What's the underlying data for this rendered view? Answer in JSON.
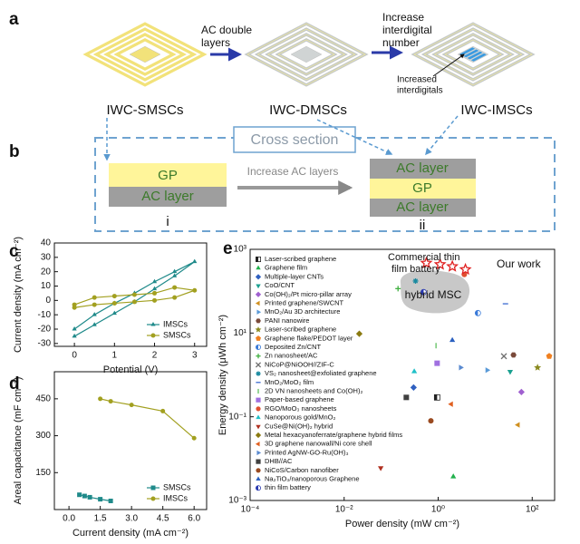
{
  "panel_a": {
    "label": "a",
    "arrow_1": [
      "AC double",
      "layers"
    ],
    "arrow_2": [
      "Increase",
      "interdigital",
      "number"
    ],
    "devices": [
      "IWC-SMSCs",
      "IWC-DMSCs",
      "IWC-IMSCs"
    ],
    "annotation": [
      "Increased",
      "interdigitals"
    ]
  },
  "panel_b": {
    "label": "b",
    "title": "Cross section",
    "arrow": "Increase AC layers",
    "left_layers": [
      "GP",
      "AC layer"
    ],
    "left_label": "i",
    "right_layers": [
      "AC layer",
      "GP",
      "AC layer"
    ],
    "right_label": "ii"
  },
  "chart_data": [
    {
      "type": "line",
      "panel_label": "c",
      "xlabel": "Potential (V)",
      "ylabel": "Current density (mA cm⁻²)",
      "xlim": [
        -0.5,
        3.3
      ],
      "xticks": [
        0,
        1,
        2,
        3
      ],
      "ylim": [
        -32,
        40
      ],
      "yticks": [
        -30,
        -20,
        -10,
        0,
        10,
        20,
        30,
        40
      ],
      "legend": "lower right",
      "series": [
        {
          "name": "IMSCs",
          "color": "#1f8a8a",
          "marker": "triangle",
          "x": [
            0,
            0.5,
            1,
            1.5,
            2,
            2.5,
            3,
            2.5,
            2,
            1.5,
            1,
            0.5,
            0
          ],
          "values": [
            -25,
            -17,
            -9,
            -1,
            8,
            17,
            27,
            20,
            13,
            5,
            -2,
            -10,
            -20
          ]
        },
        {
          "name": "SMSCs",
          "color": "#a2a020",
          "marker": "circle",
          "x": [
            0,
            0.5,
            1,
            1.5,
            2,
            2.5,
            3,
            2.5,
            2,
            1.5,
            1,
            0.5,
            0
          ],
          "values": [
            -5,
            -3,
            -2,
            -1,
            0,
            2,
            7,
            9,
            5,
            4,
            3,
            2,
            -3
          ]
        }
      ]
    },
    {
      "type": "line",
      "panel_label": "d",
      "xlabel": "Current density (mA cm⁻²)",
      "ylabel": "Areal capacitance (mF cm⁻²)",
      "xlim": [
        -0.7,
        6.6
      ],
      "xticks": [
        {
          "value": 0,
          "label": "0.0"
        },
        1.5,
        {
          "value": 3,
          "label": "3.0"
        },
        4.5,
        {
          "value": 6,
          "label": "6.0"
        }
      ],
      "ylim": [
        0,
        560
      ],
      "yticks": [
        150,
        300,
        450
      ],
      "legend": "lower right",
      "series": [
        {
          "name": "SMSCs",
          "color": "#1f8a8a",
          "marker": "square",
          "x": [
            0.5,
            0.75,
            1,
            1.5,
            2
          ],
          "values": [
            60,
            55,
            50,
            42,
            35
          ]
        },
        {
          "name": "IMSCs",
          "color": "#a2a020",
          "marker": "circle",
          "x": [
            1.5,
            2,
            3,
            4.5,
            6
          ],
          "values": [
            450,
            440,
            425,
            400,
            290
          ]
        }
      ]
    },
    {
      "type": "scatter",
      "panel_label": "e",
      "xlabel": "Power density (mW cm⁻²)",
      "ylabel": "Energy density (μWh cm⁻²)",
      "log_x": true,
      "log_y": true,
      "xlim": [
        0.0001,
        300
      ],
      "ylim": [
        0.001,
        1000
      ],
      "xticks": [
        {
          "value": 0.0001,
          "label": "10⁻⁴"
        },
        {
          "value": 0.01,
          "label": "10⁻²"
        },
        {
          "value": 1,
          "label": "10⁰"
        },
        {
          "value": 100,
          "label": "10²"
        }
      ],
      "yticks": [
        {
          "value": 0.001,
          "label": "10⁻³"
        },
        {
          "value": 0.1,
          "label": "10⁻¹"
        },
        {
          "value": 10,
          "label": "10¹"
        },
        {
          "value": 1000,
          "label": "10³"
        }
      ],
      "legend": "upper left",
      "annotations": {
        "battery": [
          "Commercial thin",
          "film battery"
        ],
        "our_work": "Our work",
        "hybrid": "hybrid MSC"
      },
      "our_work": {
        "color": "#e02020",
        "x": [
          0.56,
          1.1,
          2.0,
          3.8
        ],
        "values": [
          470,
          435,
          390,
          330
        ]
      },
      "series": [
        {
          "name": "Laser-scribed graphene",
          "color": "#222222",
          "marker": "square-half",
          "x": [
            0.95
          ],
          "values": [
            0.29
          ]
        },
        {
          "name": "Graphene film",
          "color": "#22b14c",
          "marker": "triangle",
          "x": [
            2.1
          ],
          "values": [
            0.0037
          ]
        },
        {
          "name": "Multiple-layer CNTs",
          "color": "#3060c0",
          "marker": "diamond",
          "x": [
            0.3
          ],
          "values": [
            0.5
          ]
        },
        {
          "name": "CoO/CNT",
          "color": "#1aa090",
          "marker": "triangle-down",
          "x": [
            34
          ],
          "values": [
            1.2
          ]
        },
        {
          "name": "Co(OH)₂/Pt micro-pillar array",
          "color": "#a060d0",
          "marker": "diamond",
          "x": [
            59
          ],
          "values": [
            0.39
          ]
        },
        {
          "name": "Printed graphene/SWCNT",
          "color": "#d09020",
          "marker": "triangle-left",
          "x": [
            50
          ],
          "values": [
            0.064
          ]
        },
        {
          "name": "MnO₂/Au 3D architecture",
          "color": "#5a9ad8",
          "marker": "triangle-right",
          "x": [
            11
          ],
          "values": [
            1.3
          ]
        },
        {
          "name": "PANI nanowire",
          "color": "#7a4a3a",
          "marker": "hexagon",
          "x": [
            40
          ],
          "values": [
            3
          ]
        },
        {
          "name": "Laser-scribed graphene",
          "color": "#8a8a20",
          "marker": "star",
          "x": [
            130
          ],
          "values": [
            1.5
          ]
        },
        {
          "name": "Graphene flake/PEDOT layer",
          "color": "#f08020",
          "marker": "pentagon",
          "x": [
            230
          ],
          "values": [
            2.8
          ]
        },
        {
          "name": "Deposited Zn/CNT",
          "color": "#3a7ad8",
          "marker": "circle-half",
          "x": [
            7
          ],
          "values": [
            30
          ]
        },
        {
          "name": "Zn nanosheet/AC",
          "color": "#40b040",
          "marker": "plus",
          "x": [
            0.14
          ],
          "values": [
            115
          ]
        },
        {
          "name": "NiCoP@NiOOH//ZIF-C",
          "color": "#707070",
          "marker": "x",
          "x": [
            25
          ],
          "values": [
            2.8
          ]
        },
        {
          "name": "VS₂ nanosheet@exfoliated graphene",
          "color": "#1a8aa0",
          "marker": "asterisk",
          "x": [
            0.33
          ],
          "values": [
            175
          ]
        },
        {
          "name": "MnO₂/MoO₂ film",
          "color": "#3a6ad0",
          "marker": "dash",
          "x": [
            27
          ],
          "values": [
            50
          ]
        },
        {
          "name": "2D VN nanosheets and Co(OH)₂",
          "color": "#60c060",
          "marker": "vline",
          "x": [
            0.9
          ],
          "values": [
            5
          ]
        },
        {
          "name": "Paper-based graphene",
          "color": "#a070e0",
          "marker": "square",
          "x": [
            0.95
          ],
          "values": [
            1.9
          ]
        },
        {
          "name": "RGO/MoO₃ nanosheets",
          "color": "#e05030",
          "marker": "circle",
          "x": [
            3.6
          ],
          "values": [
            250
          ]
        },
        {
          "name": "Nanoporous gold/MnO₂",
          "color": "#20c0c8",
          "marker": "triangle",
          "x": [
            0.31
          ],
          "values": [
            1.2
          ]
        },
        {
          "name": "CuSe@Ni(OH)₂ hybrid",
          "color": "#b03020",
          "marker": "triangle-down",
          "x": [
            0.06
          ],
          "values": [
            0.006
          ]
        },
        {
          "name": "Metal hexacyanoferrate/graphene hybrid films",
          "color": "#8a7a10",
          "marker": "diamond",
          "x": [
            0.021
          ],
          "values": [
            9.6
          ]
        },
        {
          "name": "3D graphene nanowall/Ni core shell",
          "color": "#e06020",
          "marker": "triangle-left",
          "x": [
            1.9
          ],
          "values": [
            0.2
          ]
        },
        {
          "name": "Printed AgNW-GO-Ru(OH)₃",
          "color": "#5a8ad0",
          "marker": "triangle-right",
          "x": [
            3.0
          ],
          "values": [
            1.5
          ]
        },
        {
          "name": "DHB//AC",
          "color": "#404040",
          "marker": "square",
          "x": [
            0.21
          ],
          "values": [
            0.29
          ]
        },
        {
          "name": "NiCoS/Carbon nanofiber",
          "color": "#9a4a20",
          "marker": "circle",
          "x": [
            0.7
          ],
          "values": [
            0.08
          ]
        },
        {
          "name": "Na₂TiO₃/nanoporous Graphene",
          "color": "#2a60c0",
          "marker": "triangle",
          "x": [
            2.0
          ],
          "values": [
            6.7
          ]
        },
        {
          "name": "thin film battery",
          "color": "#2a3ab0",
          "marker": "circle-half",
          "x": [
            0.49
          ],
          "values": [
            95
          ]
        }
      ]
    }
  ]
}
